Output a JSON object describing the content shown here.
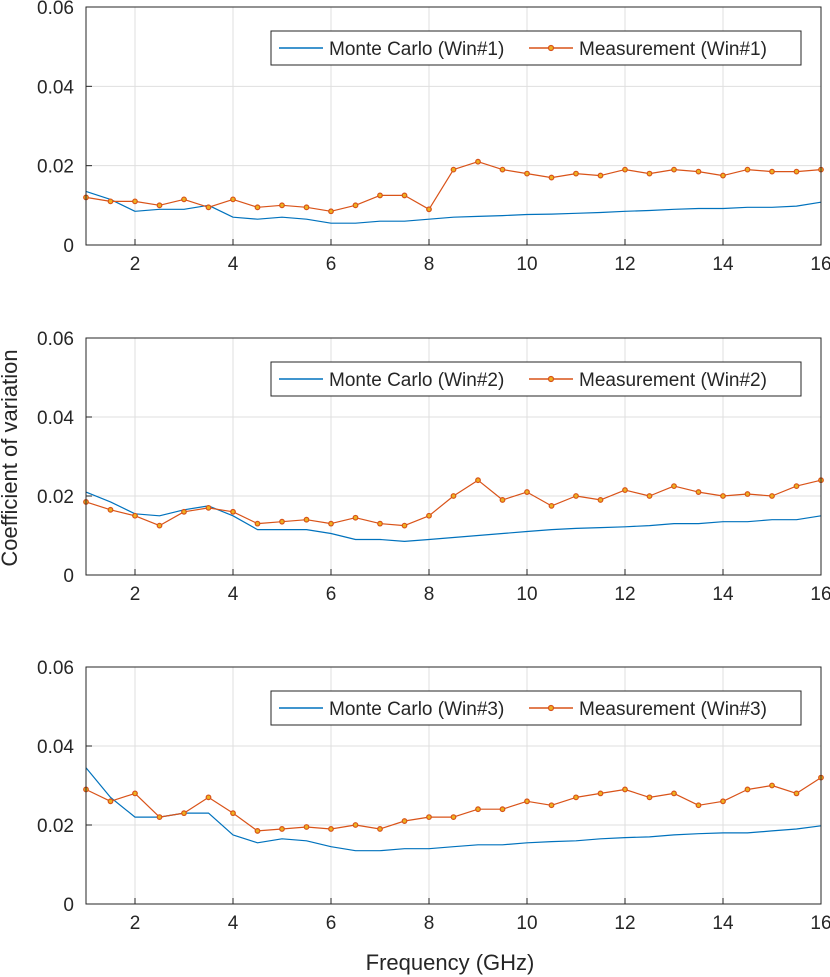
{
  "figure": {
    "ylabel": "Coefficient of variation",
    "xlabel": "Frequency (GHz)"
  },
  "chart_data": [
    {
      "type": "line",
      "title": "",
      "xlabel": "",
      "ylabel": "",
      "xlim": [
        1,
        16
      ],
      "ylim": [
        0,
        0.06
      ],
      "xticks": [
        2,
        4,
        6,
        8,
        10,
        12,
        14,
        16
      ],
      "xtick_labels": [
        "2",
        "4",
        "6",
        "8",
        "10",
        "12",
        "14",
        "16"
      ],
      "yticks": [
        0,
        0.02,
        0.04,
        0.06
      ],
      "ytick_labels": [
        "0",
        "0.02",
        "0.04",
        "0.06"
      ],
      "grid": true,
      "legend_position": "top-right",
      "series": [
        {
          "name": "Monte Carlo (Win#1)",
          "color": "#0072bd",
          "marker": "none",
          "x": [
            1.0,
            1.5,
            2.0,
            2.5,
            3.0,
            3.5,
            4.0,
            4.5,
            5.0,
            5.5,
            6.0,
            6.5,
            7.0,
            7.5,
            8.0,
            8.5,
            9.0,
            9.5,
            10.0,
            10.5,
            11.0,
            11.5,
            12.0,
            12.5,
            13.0,
            13.5,
            14.0,
            14.5,
            15.0,
            15.5,
            16.0
          ],
          "y": [
            0.0135,
            0.0115,
            0.0085,
            0.009,
            0.009,
            0.01,
            0.007,
            0.0065,
            0.007,
            0.0065,
            0.0055,
            0.0055,
            0.006,
            0.006,
            0.0065,
            0.007,
            0.0072,
            0.0074,
            0.0077,
            0.0078,
            0.008,
            0.0082,
            0.0085,
            0.0087,
            0.009,
            0.0092,
            0.0092,
            0.0095,
            0.0095,
            0.0098,
            0.0108
          ]
        },
        {
          "name": "Measurement (Win#1)",
          "color": "#d95319",
          "marker": "circle",
          "x": [
            1.0,
            1.5,
            2.0,
            2.5,
            3.0,
            3.5,
            4.0,
            4.5,
            5.0,
            5.5,
            6.0,
            6.5,
            7.0,
            7.5,
            8.0,
            8.5,
            9.0,
            9.5,
            10.0,
            10.5,
            11.0,
            11.5,
            12.0,
            12.5,
            13.0,
            13.5,
            14.0,
            14.5,
            15.0,
            15.5,
            16.0
          ],
          "y": [
            0.012,
            0.011,
            0.011,
            0.01,
            0.0115,
            0.0095,
            0.0115,
            0.0095,
            0.01,
            0.0095,
            0.0085,
            0.01,
            0.0125,
            0.0125,
            0.009,
            0.019,
            0.021,
            0.019,
            0.018,
            0.017,
            0.018,
            0.0175,
            0.019,
            0.018,
            0.019,
            0.0185,
            0.0175,
            0.019,
            0.0185,
            0.0185,
            0.019
          ]
        }
      ]
    },
    {
      "type": "line",
      "title": "",
      "xlabel": "",
      "ylabel": "",
      "xlim": [
        1,
        16
      ],
      "ylim": [
        0,
        0.06
      ],
      "xticks": [
        2,
        4,
        6,
        8,
        10,
        12,
        14,
        16
      ],
      "xtick_labels": [
        "2",
        "4",
        "6",
        "8",
        "10",
        "12",
        "14",
        "16"
      ],
      "yticks": [
        0,
        0.02,
        0.04,
        0.06
      ],
      "ytick_labels": [
        "0",
        "0.02",
        "0.04",
        "0.06"
      ],
      "grid": true,
      "legend_position": "top-right",
      "series": [
        {
          "name": "Monte Carlo (Win#2)",
          "color": "#0072bd",
          "marker": "none",
          "x": [
            1.0,
            1.5,
            2.0,
            2.5,
            3.0,
            3.5,
            4.0,
            4.5,
            5.0,
            5.5,
            6.0,
            6.5,
            7.0,
            7.5,
            8.0,
            8.5,
            9.0,
            9.5,
            10.0,
            10.5,
            11.0,
            11.5,
            12.0,
            12.5,
            13.0,
            13.5,
            14.0,
            14.5,
            15.0,
            15.5,
            16.0
          ],
          "y": [
            0.021,
            0.0185,
            0.0155,
            0.015,
            0.0165,
            0.0175,
            0.015,
            0.0115,
            0.0115,
            0.0115,
            0.0105,
            0.009,
            0.009,
            0.0085,
            0.009,
            0.0095,
            0.01,
            0.0105,
            0.011,
            0.0115,
            0.0118,
            0.012,
            0.0122,
            0.0125,
            0.013,
            0.013,
            0.0135,
            0.0135,
            0.014,
            0.014,
            0.015
          ]
        },
        {
          "name": "Measurement (Win#2)",
          "color": "#d95319",
          "marker": "circle",
          "x": [
            1.0,
            1.5,
            2.0,
            2.5,
            3.0,
            3.5,
            4.0,
            4.5,
            5.0,
            5.5,
            6.0,
            6.5,
            7.0,
            7.5,
            8.0,
            8.5,
            9.0,
            9.5,
            10.0,
            10.5,
            11.0,
            11.5,
            12.0,
            12.5,
            13.0,
            13.5,
            14.0,
            14.5,
            15.0,
            15.5,
            16.0
          ],
          "y": [
            0.0185,
            0.0165,
            0.015,
            0.0125,
            0.016,
            0.017,
            0.016,
            0.013,
            0.0135,
            0.014,
            0.013,
            0.0145,
            0.013,
            0.0125,
            0.015,
            0.02,
            0.024,
            0.019,
            0.021,
            0.0175,
            0.02,
            0.019,
            0.0215,
            0.02,
            0.0225,
            0.021,
            0.02,
            0.0205,
            0.02,
            0.0225,
            0.024
          ]
        }
      ]
    },
    {
      "type": "line",
      "title": "",
      "xlabel": "Frequency (GHz)",
      "ylabel": "",
      "xlim": [
        1,
        16
      ],
      "ylim": [
        0,
        0.06
      ],
      "xticks": [
        2,
        4,
        6,
        8,
        10,
        12,
        14,
        16
      ],
      "xtick_labels": [
        "2",
        "4",
        "6",
        "8",
        "10",
        "12",
        "14",
        "16"
      ],
      "yticks": [
        0,
        0.02,
        0.04,
        0.06
      ],
      "ytick_labels": [
        "0",
        "0.02",
        "0.04",
        "0.06"
      ],
      "grid": true,
      "legend_position": "top-right",
      "series": [
        {
          "name": "Monte Carlo (Win#3)",
          "color": "#0072bd",
          "marker": "none",
          "x": [
            1.0,
            1.5,
            2.0,
            2.5,
            3.0,
            3.5,
            4.0,
            4.5,
            5.0,
            5.5,
            6.0,
            6.5,
            7.0,
            7.5,
            8.0,
            8.5,
            9.0,
            9.5,
            10.0,
            10.5,
            11.0,
            11.5,
            12.0,
            12.5,
            13.0,
            13.5,
            14.0,
            14.5,
            15.0,
            15.5,
            16.0
          ],
          "y": [
            0.0345,
            0.027,
            0.022,
            0.022,
            0.023,
            0.023,
            0.0175,
            0.0155,
            0.0165,
            0.016,
            0.0145,
            0.0135,
            0.0135,
            0.014,
            0.014,
            0.0145,
            0.015,
            0.015,
            0.0155,
            0.0158,
            0.016,
            0.0165,
            0.0168,
            0.017,
            0.0175,
            0.0178,
            0.018,
            0.018,
            0.0185,
            0.019,
            0.0198
          ]
        },
        {
          "name": "Measurement (Win#3)",
          "color": "#d95319",
          "marker": "circle",
          "x": [
            1.0,
            1.5,
            2.0,
            2.5,
            3.0,
            3.5,
            4.0,
            4.5,
            5.0,
            5.5,
            6.0,
            6.5,
            7.0,
            7.5,
            8.0,
            8.5,
            9.0,
            9.5,
            10.0,
            10.5,
            11.0,
            11.5,
            12.0,
            12.5,
            13.0,
            13.5,
            14.0,
            14.5,
            15.0,
            15.5,
            16.0
          ],
          "y": [
            0.029,
            0.026,
            0.028,
            0.022,
            0.023,
            0.027,
            0.023,
            0.0185,
            0.019,
            0.0195,
            0.019,
            0.02,
            0.019,
            0.021,
            0.022,
            0.022,
            0.024,
            0.024,
            0.026,
            0.025,
            0.027,
            0.028,
            0.029,
            0.027,
            0.028,
            0.025,
            0.026,
            0.029,
            0.03,
            0.028,
            0.032
          ]
        }
      ]
    }
  ]
}
